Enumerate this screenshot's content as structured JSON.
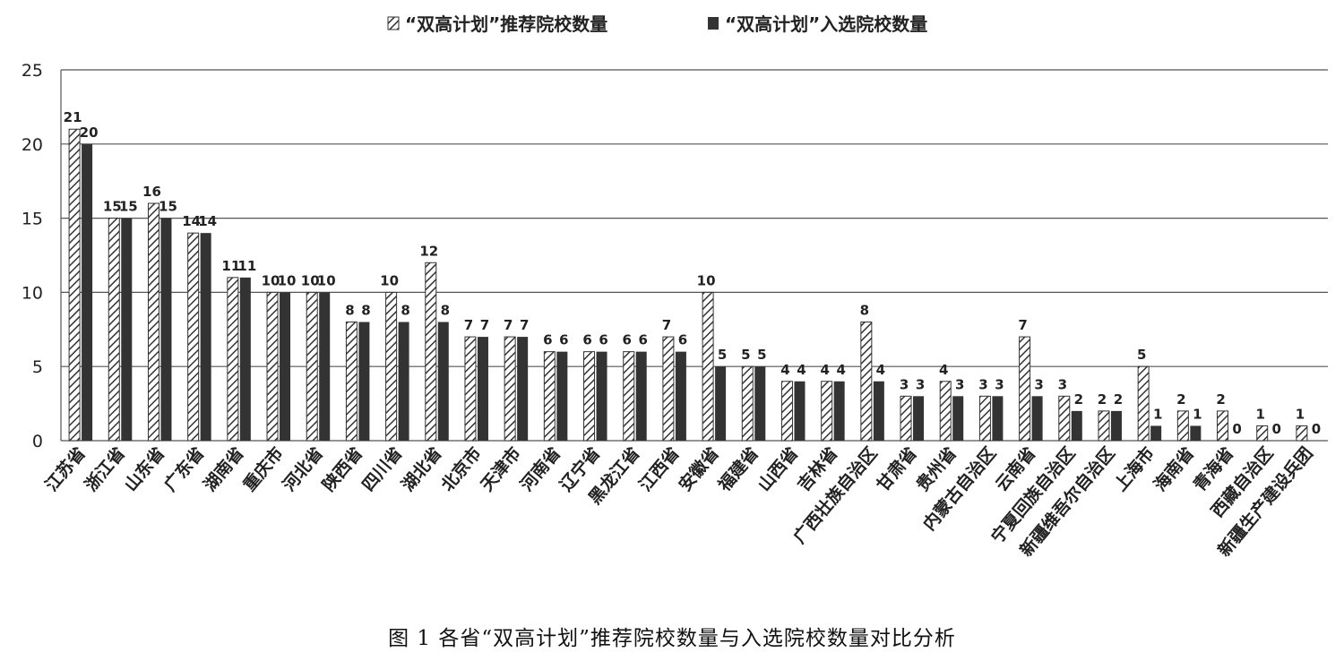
{
  "chart_data": {
    "type": "bar",
    "categories": [
      "江苏省",
      "浙江省",
      "山东省",
      "广东省",
      "湖南省",
      "重庆市",
      "河北省",
      "陕西省",
      "四川省",
      "湖北省",
      "北京市",
      "天津市",
      "河南省",
      "辽宁省",
      "黑龙江省",
      "江西省",
      "安徽省",
      "福建省",
      "山西省",
      "吉林省",
      "广西壮族自治区",
      "甘肃省",
      "贵州省",
      "内蒙古自治区",
      "云南省",
      "宁夏回族自治区",
      "新疆维吾尔自治区",
      "上海市",
      "海南省",
      "青海省",
      "西藏自治区",
      "新疆生产建设兵团"
    ],
    "series": [
      {
        "name": "“双高计划”推荐院校数量",
        "values": [
          21,
          15,
          16,
          14,
          11,
          10,
          10,
          8,
          10,
          12,
          7,
          7,
          6,
          6,
          6,
          7,
          10,
          5,
          4,
          4,
          8,
          3,
          4,
          3,
          7,
          3,
          2,
          5,
          2,
          2,
          1,
          1
        ]
      },
      {
        "name": "“双高计划”入选院校数量",
        "values": [
          20,
          15,
          15,
          14,
          11,
          10,
          10,
          8,
          8,
          8,
          7,
          7,
          6,
          6,
          6,
          6,
          5,
          5,
          4,
          4,
          4,
          3,
          3,
          3,
          3,
          2,
          2,
          1,
          1,
          0,
          0,
          0
        ]
      }
    ],
    "ylim": [
      0,
      25
    ],
    "yticks": [
      "0",
      "5",
      "10",
      "15",
      "20",
      "25"
    ],
    "xlabel": "",
    "ylabel": "",
    "grid": true,
    "legend_position": "top-center",
    "colors": {
      "recommended_fill": "#ffffff",
      "recommended_hatch": "#333333",
      "selected": "#333333",
      "grid": "#555555",
      "text": "#222222"
    }
  },
  "caption": "图 1  各省“双高计划”推荐院校数量与入选院校数量对比分析"
}
